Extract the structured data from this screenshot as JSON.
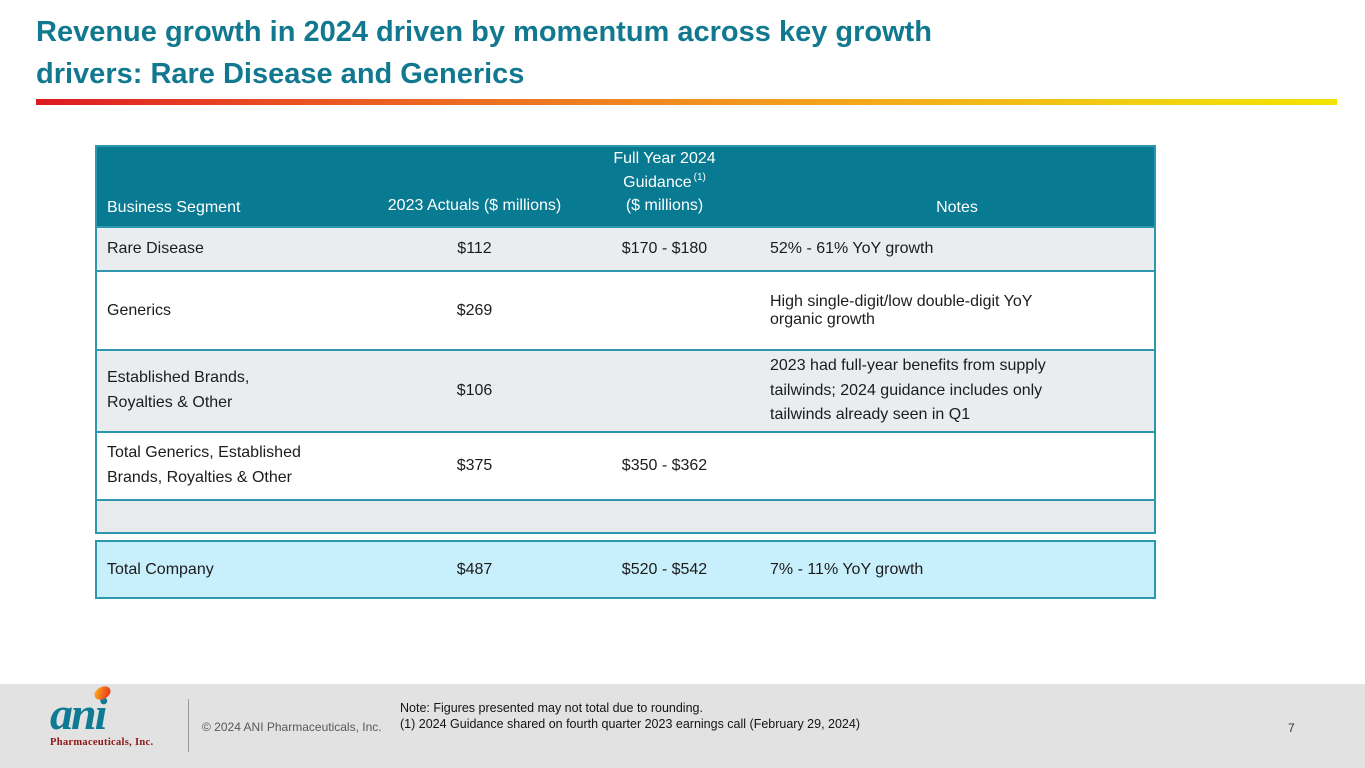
{
  "slide": {
    "title": "Revenue growth in 2024 driven by momentum across key growth\ndrivers: Rare Disease and Generics"
  },
  "colors": {
    "title_teal": "#11798f",
    "table_header_teal": "#087a92",
    "table_border_teal": "#2e96ad",
    "row_gray": "#e9edef",
    "spacer_gray": "#e8eaeb",
    "total_row_cyan": "#c7f0fc",
    "accent_bar_start_red": "#dd1a21",
    "accent_bar_end_yellow": "#f4e400",
    "footer_gray": "#e2e2e2",
    "logo_teal": "#0f7a94",
    "logo_red": "#8c1713"
  },
  "table": {
    "headers": {
      "segment": "Business Segment",
      "actuals": "2023 Actuals\n($ millions)",
      "guidance_line1": "Full Year 2024",
      "guidance_line2": "Guidance",
      "guidance_sup": "(1)",
      "guidance_line3": "($ millions)",
      "notes": "Notes"
    },
    "rows": [
      {
        "segment": "Rare Disease",
        "actuals": "$112",
        "guidance": "$170 - $180",
        "notes": "52% - 61% YoY growth"
      },
      {
        "segment": "Generics",
        "actuals": "$269",
        "guidance": "",
        "notes": "High single-digit/low double-digit YoY\norganic growth"
      },
      {
        "segment": "Established Brands,\nRoyalties & Other",
        "actuals": "$106",
        "guidance": "",
        "notes": "2023 had full-year benefits from supply\ntailwinds; 2024 guidance includes only\ntailwinds already seen in Q1"
      },
      {
        "segment": "Total Generics, Established\nBrands, Royalties & Other",
        "actuals": "$375",
        "guidance": "$350 - $362",
        "notes": ""
      }
    ],
    "total_row": {
      "segment": "Total Company",
      "actuals": "$487",
      "guidance": "$520 - $542",
      "notes": "7% - 11% YoY growth"
    }
  },
  "footer": {
    "logo_word": "ani",
    "logo_sub": "Pharmaceuticals, Inc.",
    "copyright": "© 2024 ANI Pharmaceuticals, Inc.",
    "note_line1": "Note: Figures presented may not total due to rounding.",
    "note_line2": "(1)  2024 Guidance shared on fourth quarter 2023 earnings call (February 29, 2024)",
    "page_number": "7"
  }
}
